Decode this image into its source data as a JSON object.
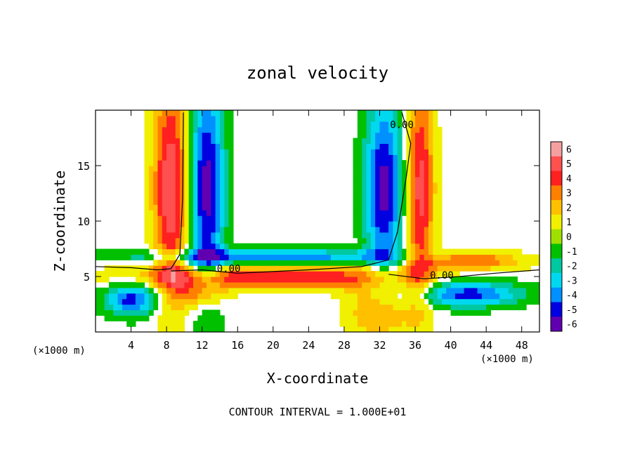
{
  "chart_data": {
    "type": "heatmap",
    "title": "zonal velocity",
    "xlabel": "X-coordinate",
    "ylabel": "Z-coordinate",
    "x_unit_left": "(×1000 m)",
    "x_unit_right": "(×1000 m)",
    "xlim": [
      0,
      50
    ],
    "ylim": [
      0,
      20
    ],
    "x_ticks": [
      4,
      8,
      12,
      16,
      20,
      24,
      28,
      32,
      36,
      40,
      44,
      48
    ],
    "y_ticks": [
      5,
      10,
      15
    ],
    "footer": "CONTOUR INTERVAL = 1.000E+01",
    "colorbar": {
      "levels": [
        6,
        5,
        4,
        3,
        2,
        1,
        0,
        -1,
        -2,
        -3,
        -4,
        -5,
        -6
      ],
      "colors": [
        "#f4a0a0",
        "#ff5050",
        "#ff2020",
        "#ff8000",
        "#ffc000",
        "#f0f000",
        "#a0e000",
        "#00c000",
        "#00c8a0",
        "#00d8f0",
        "#0090ff",
        "#0000e0",
        "#6000b0"
      ]
    },
    "contour_labels": [
      {
        "text": "0.00",
        "x": 15.0,
        "z": 5.4
      },
      {
        "text": "0.00",
        "x": 34.5,
        "z": 18.4
      },
      {
        "text": "0.00",
        "x": 39.0,
        "z": 4.8
      }
    ],
    "zero_contours": [
      [
        [
          0,
          5.9
        ],
        [
          4,
          5.8
        ],
        [
          7,
          5.6
        ],
        [
          8.5,
          5.7
        ],
        [
          9.5,
          7
        ],
        [
          9.8,
          12
        ],
        [
          9.9,
          19.8
        ]
      ],
      [
        [
          8.5,
          5.5
        ],
        [
          12,
          5.6
        ],
        [
          16,
          5.3
        ],
        [
          24,
          5.6
        ],
        [
          30,
          5.9
        ],
        [
          33,
          6.5
        ],
        [
          34,
          9
        ],
        [
          35,
          14
        ],
        [
          35.5,
          17
        ],
        [
          34.5,
          19.8
        ]
      ],
      [
        [
          33,
          5.2
        ],
        [
          37,
          4.8
        ],
        [
          41,
          5.0
        ],
        [
          45,
          5.3
        ],
        [
          50,
          5.6
        ]
      ]
    ]
  }
}
